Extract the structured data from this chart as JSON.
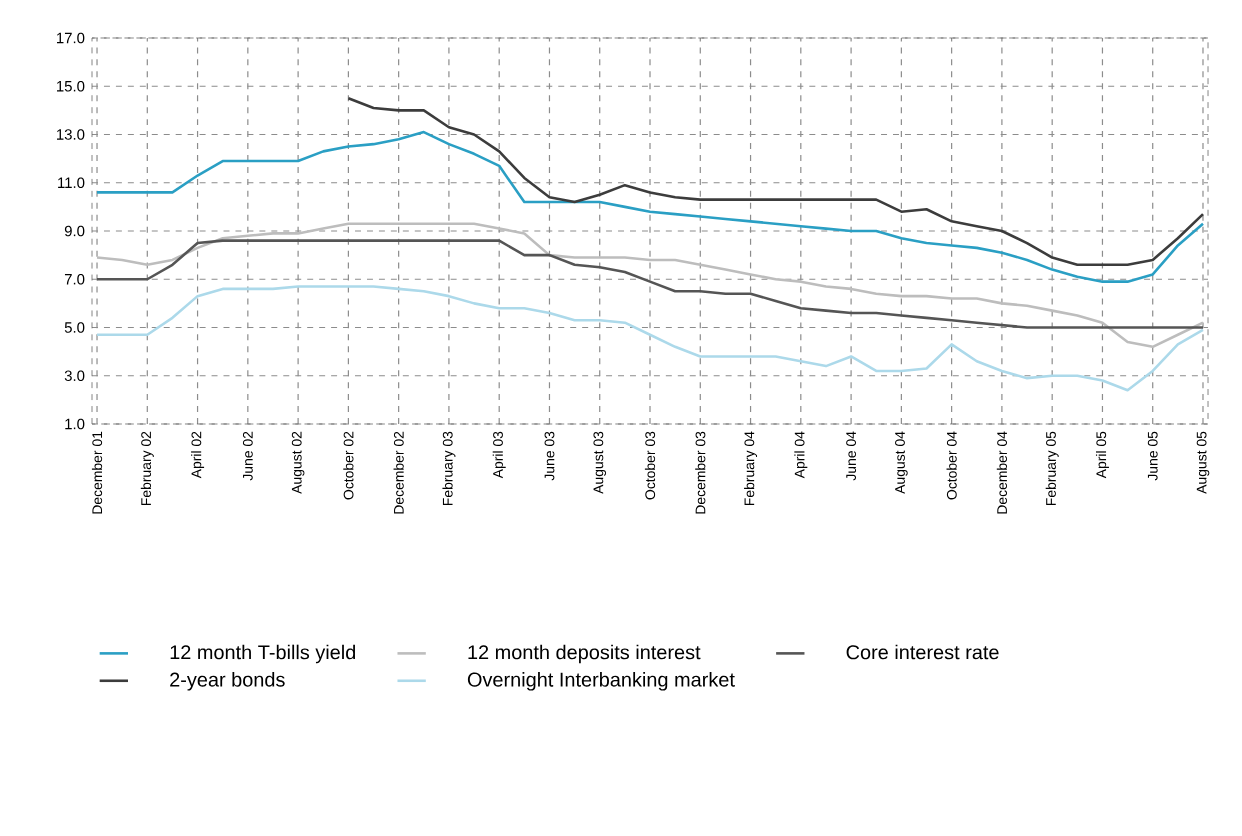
{
  "chart_data": {
    "type": "line",
    "categories": [
      "December 01",
      null,
      "February 02",
      null,
      "April 02",
      null,
      "June 02",
      null,
      "August 02",
      null,
      "October 02",
      null,
      "December 02",
      null,
      "February 03",
      null,
      "April 03",
      null,
      "June 03",
      null,
      "August 03",
      null,
      "October 03",
      null,
      "December 03",
      null,
      "February 04",
      null,
      "April 04",
      null,
      "June 04",
      null,
      "August 04",
      null,
      "October 04",
      null,
      "December 04",
      null,
      "February 05",
      null,
      "April 05",
      null,
      "June 05",
      null,
      "August 05"
    ],
    "series": [
      {
        "name": "12 month T-bills yield",
        "color": "#2a9fc4",
        "values": [
          10.6,
          10.6,
          10.6,
          10.6,
          11.3,
          11.9,
          11.9,
          11.9,
          11.9,
          12.3,
          12.5,
          12.6,
          12.8,
          13.1,
          12.6,
          12.2,
          11.7,
          10.2,
          10.2,
          10.2,
          10.2,
          10.0,
          9.8,
          9.7,
          9.6,
          9.5,
          9.4,
          9.3,
          9.2,
          9.1,
          9.0,
          9.0,
          8.7,
          8.5,
          8.4,
          8.3,
          8.1,
          7.8,
          7.4,
          7.1,
          6.9,
          6.9,
          7.2,
          8.4,
          9.3
        ]
      },
      {
        "name": "2-year bonds",
        "color": "#3c3c3c",
        "values": [
          null,
          null,
          null,
          null,
          null,
          null,
          null,
          null,
          null,
          null,
          14.5,
          14.1,
          14.0,
          14.0,
          13.3,
          13.0,
          12.3,
          11.2,
          10.4,
          10.2,
          10.5,
          10.9,
          10.6,
          10.4,
          10.3,
          10.3,
          10.3,
          10.3,
          10.3,
          10.3,
          10.3,
          10.3,
          9.8,
          9.9,
          9.4,
          9.2,
          9.0,
          8.5,
          7.9,
          7.6,
          7.6,
          7.6,
          7.8,
          8.7,
          9.7
        ]
      },
      {
        "name": "12 month deposits interest",
        "color": "#bdbdbd",
        "values": [
          7.9,
          7.8,
          7.6,
          7.8,
          8.3,
          8.7,
          8.8,
          8.9,
          8.9,
          9.1,
          9.3,
          9.3,
          9.3,
          9.3,
          9.3,
          9.3,
          9.1,
          8.9,
          8.0,
          7.9,
          7.9,
          7.9,
          7.8,
          7.8,
          7.6,
          7.4,
          7.2,
          7.0,
          6.9,
          6.7,
          6.6,
          6.4,
          6.3,
          6.3,
          6.2,
          6.2,
          6.0,
          5.9,
          5.7,
          5.5,
          5.2,
          4.4,
          4.2,
          4.7,
          5.2
        ]
      },
      {
        "name": "Overnight Interbanking market",
        "color": "#acd9ea",
        "values": [
          4.7,
          4.7,
          4.7,
          5.4,
          6.3,
          6.6,
          6.6,
          6.6,
          6.7,
          6.7,
          6.7,
          6.7,
          6.6,
          6.5,
          6.3,
          6.0,
          5.8,
          5.8,
          5.6,
          5.3,
          5.3,
          5.2,
          4.7,
          4.2,
          3.8,
          3.8,
          3.8,
          3.8,
          3.6,
          3.4,
          3.8,
          3.2,
          3.2,
          3.3,
          4.3,
          3.6,
          3.2,
          2.9,
          3.0,
          3.0,
          2.8,
          2.4,
          3.2,
          4.3,
          4.9
        ]
      },
      {
        "name": "Core interest rate",
        "color": "#555555",
        "values": [
          7.0,
          7.0,
          7.0,
          7.6,
          8.5,
          8.6,
          8.6,
          8.6,
          8.6,
          8.6,
          8.6,
          8.6,
          8.6,
          8.6,
          8.6,
          8.6,
          8.6,
          8.0,
          8.0,
          7.6,
          7.5,
          7.3,
          6.9,
          6.5,
          6.5,
          6.4,
          6.4,
          6.1,
          5.8,
          5.7,
          5.6,
          5.6,
          5.5,
          5.4,
          5.3,
          5.2,
          5.1,
          5.0,
          5.0,
          5.0,
          5.0,
          5.0,
          5.0,
          5.0,
          5.0
        ]
      }
    ],
    "ylim": [
      1,
      17
    ],
    "yticks": [
      {
        "value": 1,
        "label": "1.0"
      },
      {
        "value": 3,
        "label": "3.0"
      },
      {
        "value": 5,
        "label": "5.0"
      },
      {
        "value": 7,
        "label": "7.0"
      },
      {
        "value": 9,
        "label": "9.0"
      },
      {
        "value": 11,
        "label": "11.0"
      },
      {
        "value": 13,
        "label": "13.0"
      },
      {
        "value": 15,
        "label": "15.0"
      },
      {
        "value": 17,
        "label": "17.0"
      }
    ],
    "grid": true,
    "legend": "bottom",
    "marker": "none",
    "line_style": "solid"
  }
}
